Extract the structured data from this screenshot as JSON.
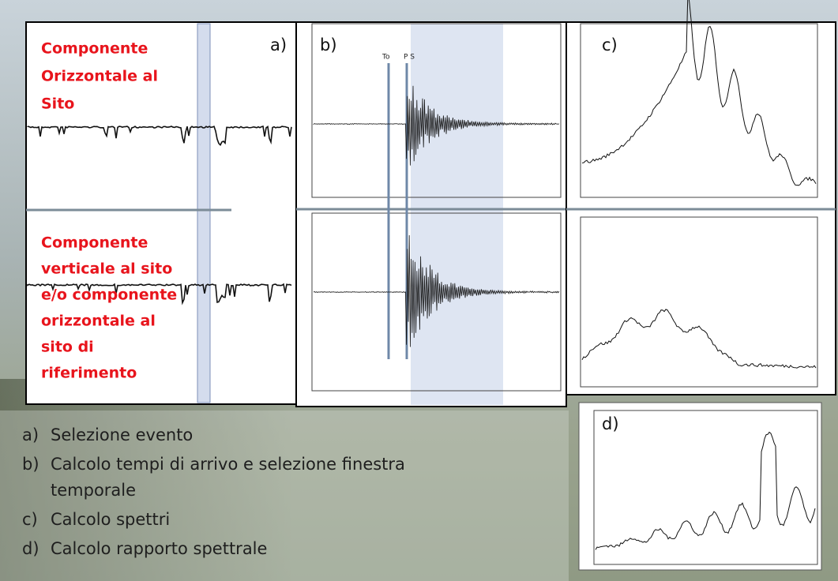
{
  "panels": {
    "a": {
      "label": "a)",
      "top_text": [
        "Componente",
        "Orizzontale al",
        "Sito"
      ],
      "bottom_text": [
        "Componente",
        "verticale al sito",
        "e/o componente",
        "orizzontale al",
        "sito di",
        "riferimento"
      ]
    },
    "b": {
      "label": "b)",
      "markers": [
        "To",
        "P S"
      ]
    },
    "c": {
      "label": "c)"
    },
    "d": {
      "label": "d)"
    }
  },
  "list": [
    {
      "marker": "a)",
      "lines": [
        "Selezione evento"
      ]
    },
    {
      "marker": "b)",
      "lines": [
        "Calcolo tempi di arrivo e selezione finestra",
        "temporale"
      ]
    },
    {
      "marker": "c)",
      "lines": [
        "Calcolo spettri"
      ]
    },
    {
      "marker": "d)",
      "lines": [
        "Calcolo rapporto spettrale"
      ]
    }
  ]
}
